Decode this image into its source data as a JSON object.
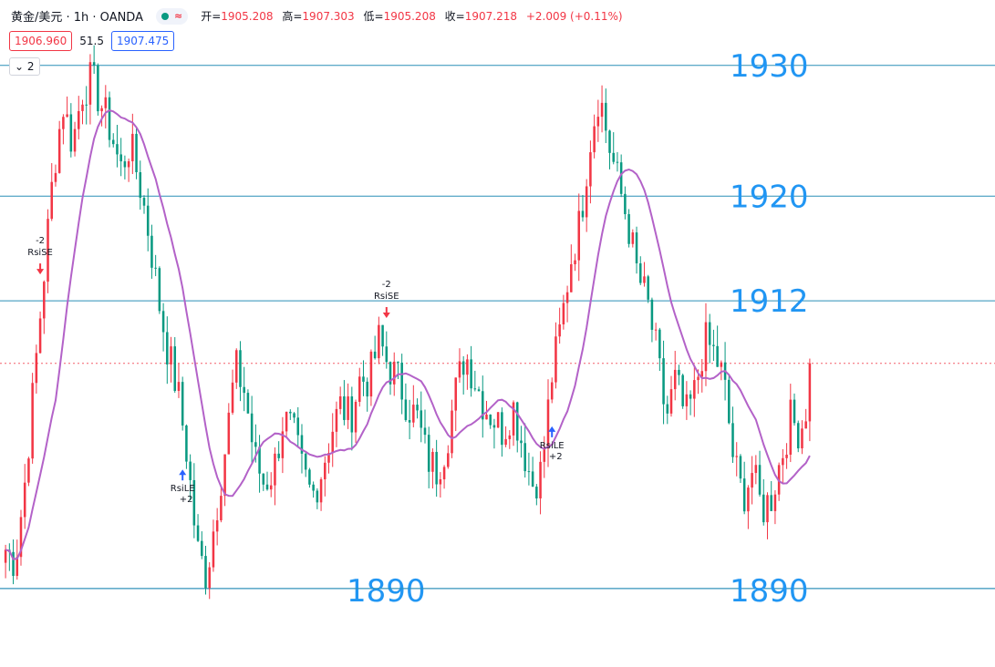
{
  "header": {
    "symbol": "黄金/美元 · 1h · OANDA",
    "pill_icon": "≈",
    "open_label": "开=",
    "open": "1905.208",
    "high_label": "高=",
    "high": "1907.303",
    "low_label": "低=",
    "low": "1905.208",
    "close_label": "收=",
    "close": "1907.218",
    "change": "+2.009 (+0.11%)",
    "sell_price": "1906.960",
    "spread": "51.5",
    "buy_price": "1907.475",
    "indicator_toggle": "2"
  },
  "colors": {
    "up": "#f23645",
    "down": "#089981",
    "ma": "#b362c8",
    "hline": "#2a8fb7",
    "label": "#2196f3"
  },
  "chart_data": {
    "type": "candlestick",
    "ylim": [
      1884,
      1935
    ],
    "num_bars": 210,
    "close_series_approx": [
      1893,
      1892,
      1898,
      1906,
      1914,
      1922,
      1927,
      1924,
      1928,
      1929,
      1927,
      1925,
      1922,
      1924,
      1921,
      1917,
      1912,
      1908,
      1905,
      1900,
      1893,
      1891,
      1896,
      1901,
      1907,
      1905,
      1900,
      1898,
      1899,
      1903,
      1902,
      1899,
      1897,
      1899,
      1902,
      1904,
      1903,
      1906,
      1906,
      1909,
      1907,
      1906,
      1904,
      1903,
      1900,
      1899,
      1901,
      1905,
      1908,
      1906,
      1904,
      1903,
      1902,
      1904,
      1901,
      1898,
      1899,
      1906,
      1910,
      1915,
      1918,
      1924,
      1928,
      1924,
      1921,
      1918,
      1914,
      1912,
      1908,
      1903,
      1906,
      1903,
      1905,
      1909,
      1908,
      1906,
      1900,
      1897,
      1899,
      1896,
      1897,
      1900,
      1903,
      1902,
      1905
    ],
    "horizontal_lines": [
      {
        "label": "1930",
        "value": 1930
      },
      {
        "label": "1920",
        "value": 1920
      },
      {
        "label": "1912",
        "value": 1912
      },
      {
        "label": "1890",
        "value": 1890
      },
      {
        "label": "1890",
        "value": 1890
      }
    ],
    "current_price": 1907.218,
    "signals": [
      {
        "type": "RsiSE",
        "qty": "-2",
        "bar": 9
      },
      {
        "type": "RsiLE",
        "qty": "+2",
        "bar": 46
      },
      {
        "type": "RsiSE",
        "qty": "-2",
        "bar": 99
      },
      {
        "type": "RsiLE",
        "qty": "+2",
        "bar": 142
      }
    ]
  }
}
